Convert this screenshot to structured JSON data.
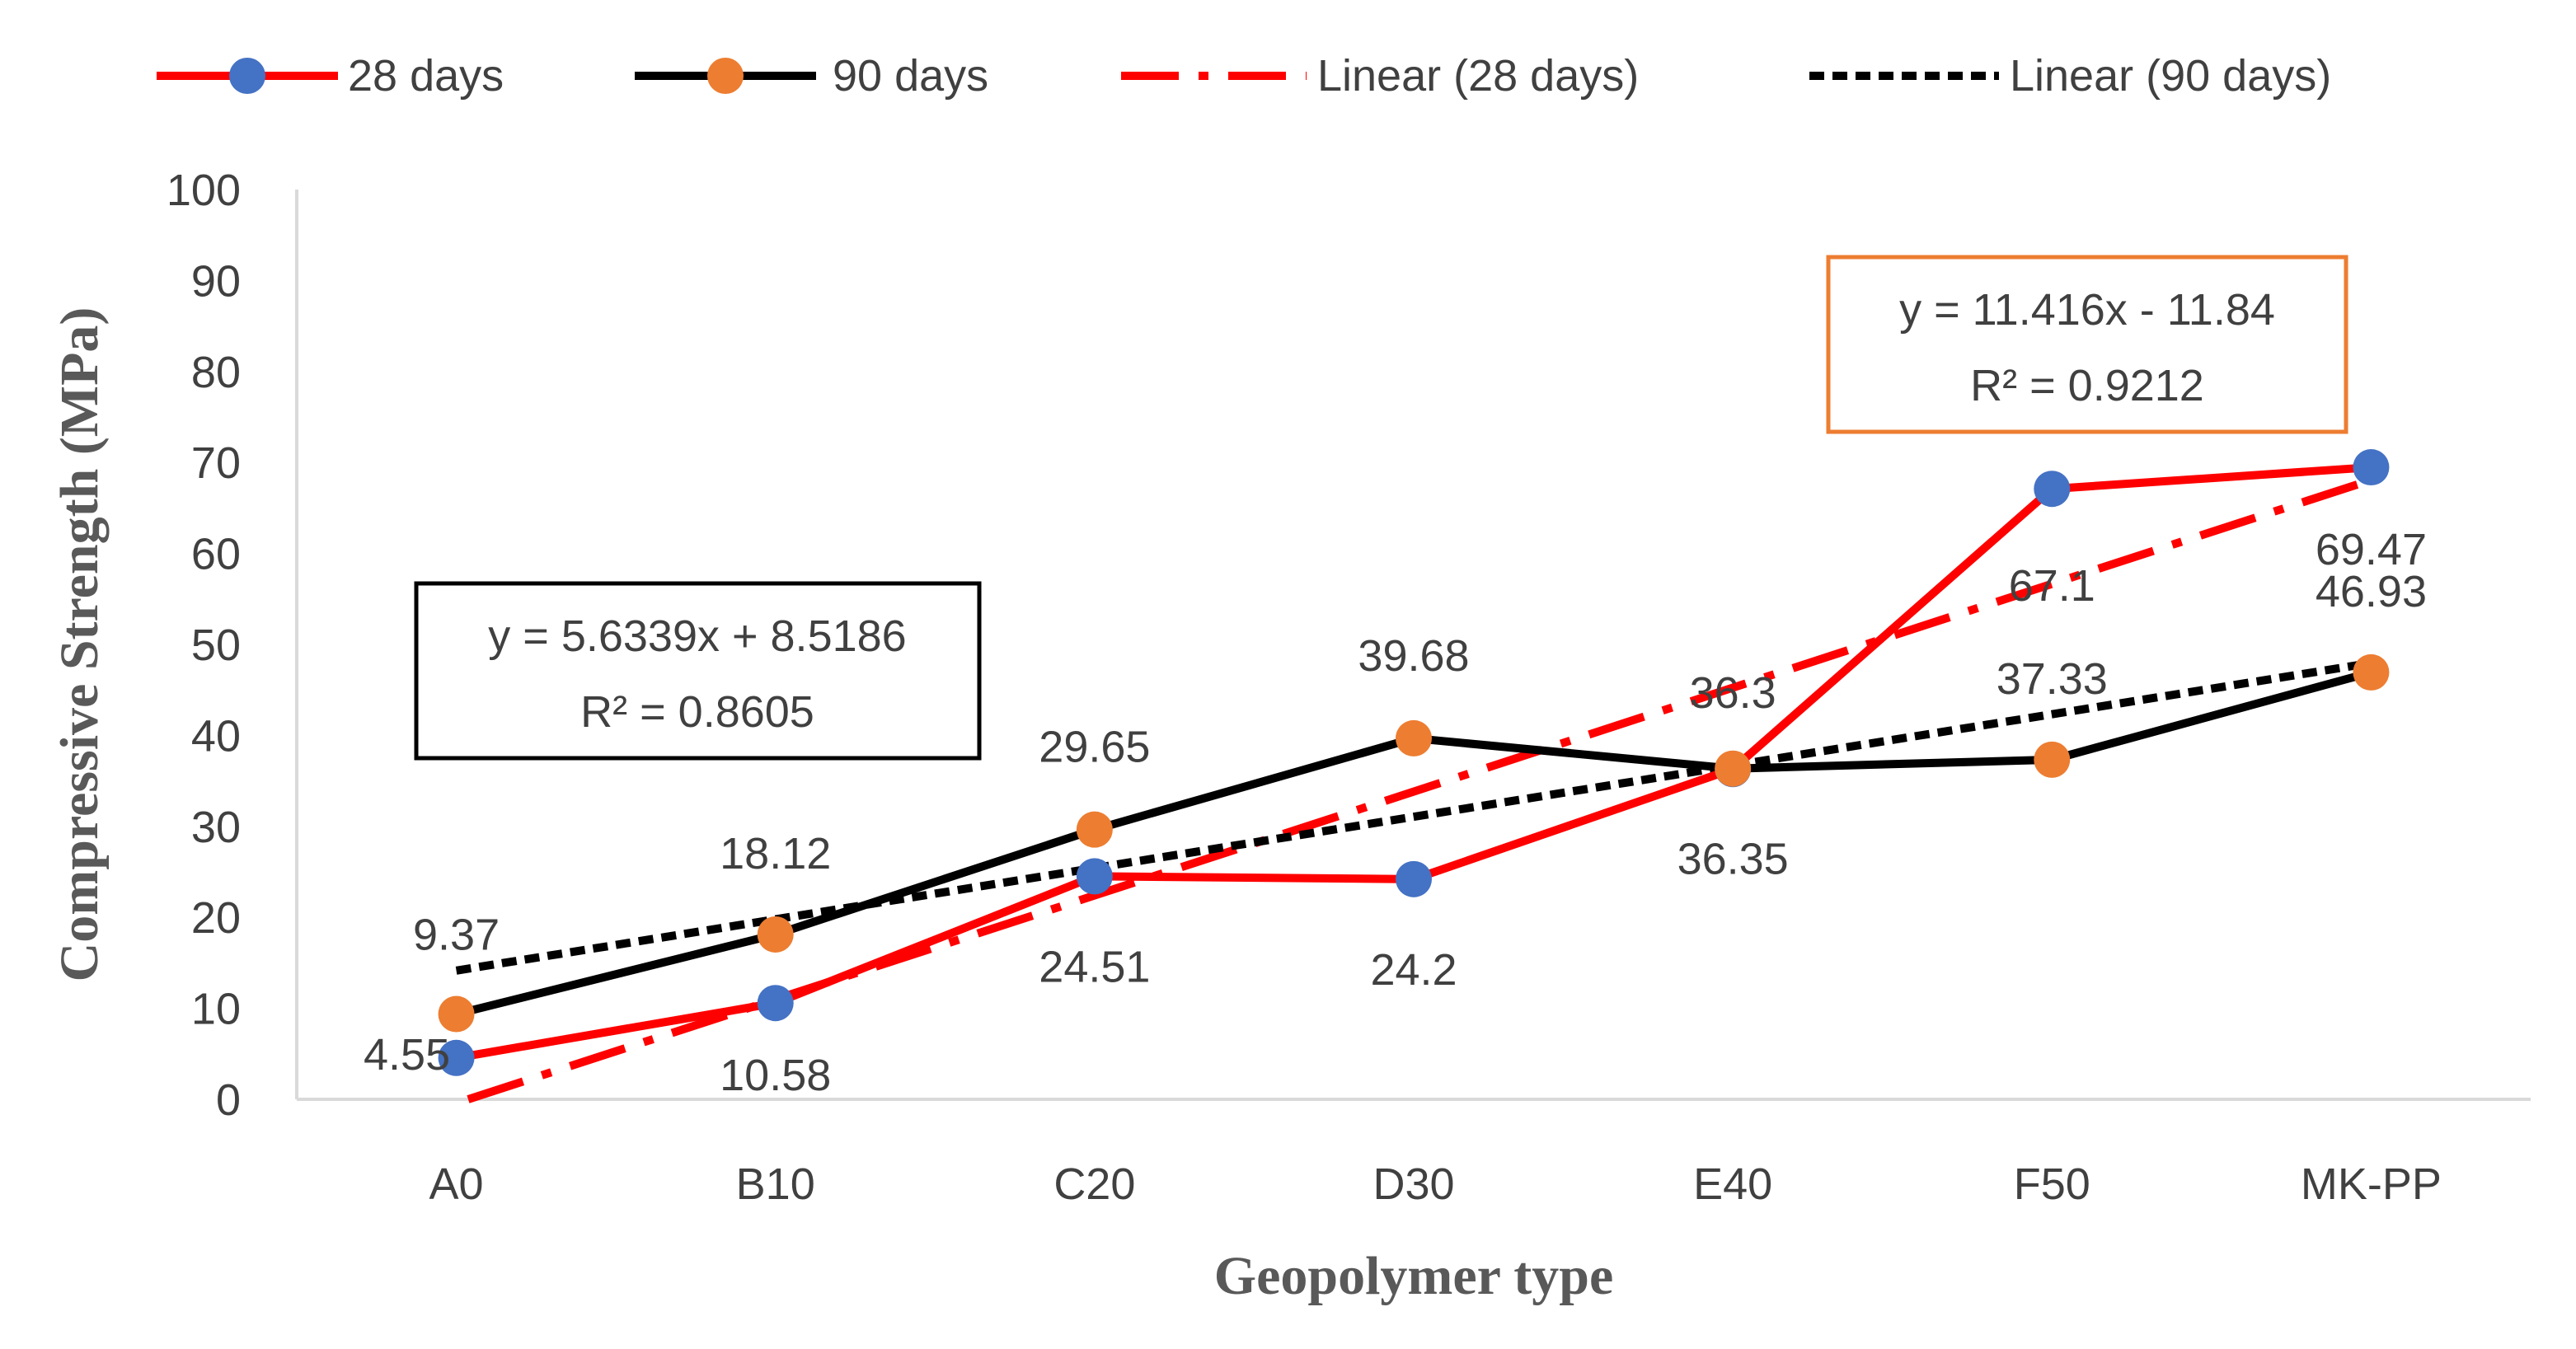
{
  "chart_data": {
    "type": "line",
    "xlabel": "Geopolymer type",
    "ylabel": "Compressive Strength (MPa)",
    "ylim": [
      0,
      100
    ],
    "yticks": [
      0,
      10,
      20,
      30,
      40,
      50,
      60,
      70,
      80,
      90,
      100
    ],
    "categories": [
      "A0",
      "B10",
      "C20",
      "D30",
      "E40",
      "F50",
      "MK-PP"
    ],
    "grid": false,
    "legend_position": "top",
    "series": [
      {
        "name": "28 days",
        "values": [
          4.55,
          10.58,
          24.51,
          24.2,
          36.3,
          67.1,
          69.47
        ],
        "labels": [
          "4.55",
          "10.58",
          "24.51",
          "24.2",
          "36.3",
          "67.1",
          "69.47"
        ],
        "line_color": "#ff0000",
        "marker_color": "#4472c4"
      },
      {
        "name": "90 days",
        "values": [
          9.37,
          18.12,
          29.65,
          39.68,
          36.35,
          37.33,
          46.93
        ],
        "labels": [
          "9.37",
          "18.12",
          "29.65",
          "39.68",
          "36.35",
          "37.33",
          "46.93"
        ],
        "line_color": "#000000",
        "marker_color": "#ed7d31"
      }
    ],
    "trendlines": [
      {
        "name": "Linear (28 days)",
        "slope": 11.416,
        "intercept": -11.84,
        "equation": "y = 11.416x - 11.84",
        "r2": "R² = 0.9212",
        "color": "#ff0000",
        "box_color": "#ed7d31"
      },
      {
        "name": "Linear (90 days)",
        "slope": 5.6339,
        "intercept": 8.5186,
        "equation": "y = 5.6339x + 8.5186",
        "r2": "R² = 0.8605",
        "color": "#000000",
        "box_color": "#000000"
      }
    ]
  }
}
